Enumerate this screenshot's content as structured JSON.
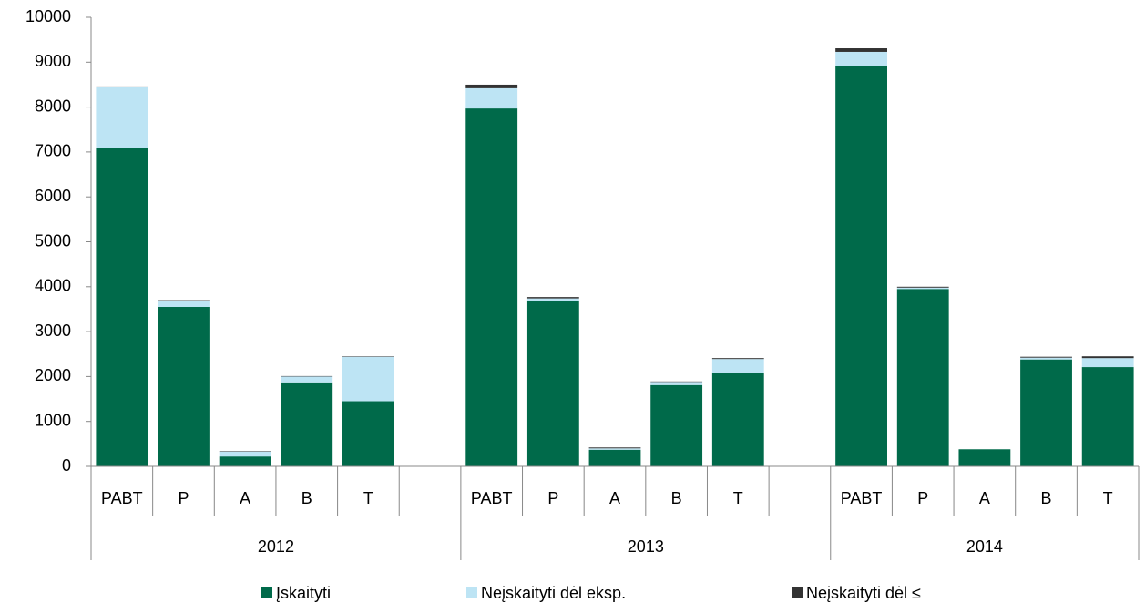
{
  "chart_data": {
    "type": "stacked_bar",
    "categories": [
      "PABT",
      "P",
      "A",
      "B",
      "T",
      null,
      "PABT",
      "P",
      "A",
      "B",
      "T",
      null,
      "PABT",
      "P",
      "A",
      "B",
      "T"
    ],
    "groups": [
      {
        "label": "2012",
        "span": 6
      },
      {
        "label": "2013",
        "span": 6
      },
      {
        "label": "2014",
        "span": 5
      }
    ],
    "series": [
      {
        "name": "Įskaityti",
        "color": "#006a4a",
        "values": [
          7100,
          3550,
          220,
          1870,
          1450,
          null,
          7970,
          3690,
          370,
          1810,
          2090,
          null,
          8920,
          3950,
          380,
          2380,
          2210
        ]
      },
      {
        "name": "Neįskaityti dėl eksp.",
        "color": "#bde4f4",
        "values": [
          1340,
          140,
          110,
          130,
          990,
          null,
          450,
          50,
          30,
          70,
          300,
          null,
          310,
          30,
          0,
          40,
          200
        ]
      },
      {
        "name": "Neįskaityti dėl ≤",
        "color": "#333333",
        "values": [
          20,
          10,
          10,
          10,
          10,
          null,
          80,
          30,
          20,
          10,
          20,
          null,
          80,
          20,
          0,
          20,
          40
        ]
      }
    ],
    "ylim": [
      0,
      10000
    ],
    "yticks": [
      0,
      1000,
      2000,
      3000,
      4000,
      5000,
      6000,
      7000,
      8000,
      9000,
      10000
    ],
    "legend": "bottom"
  }
}
